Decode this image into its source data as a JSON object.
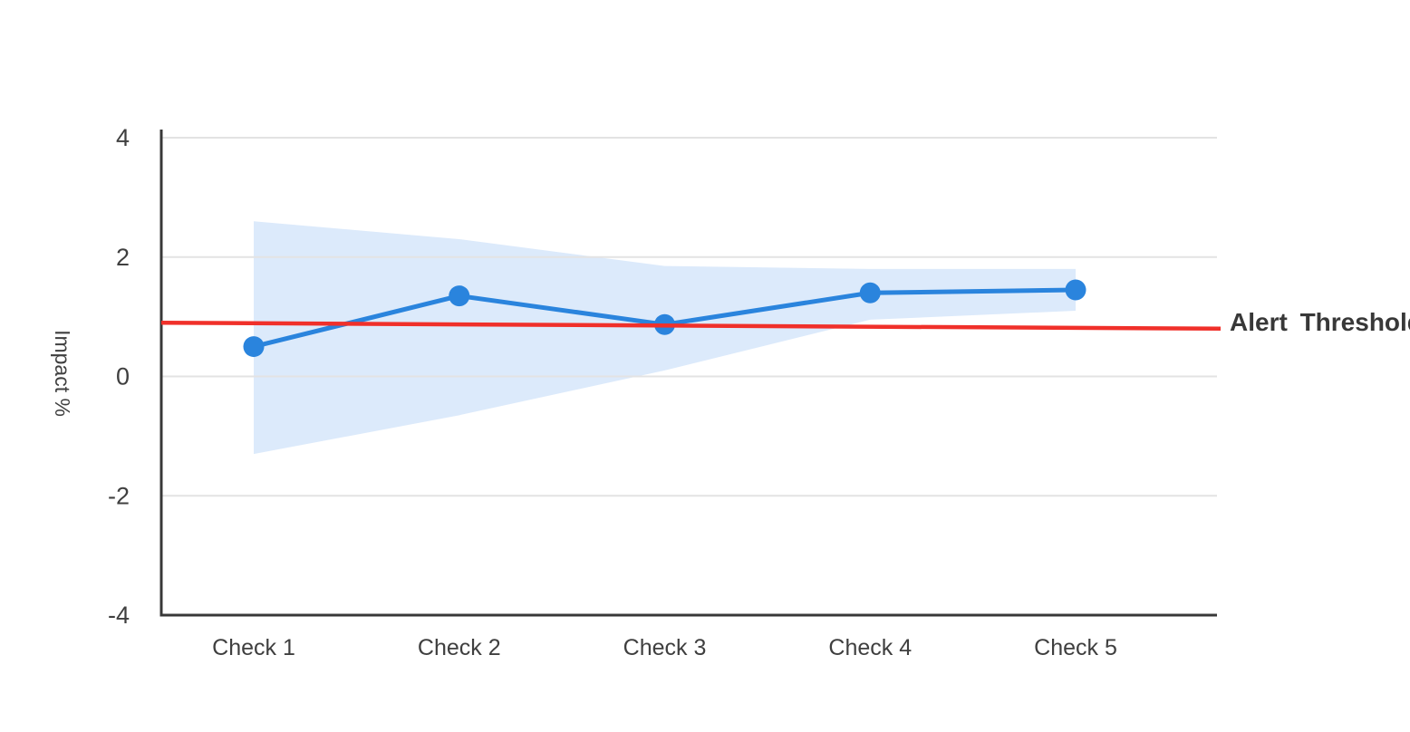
{
  "chart_data": {
    "type": "line",
    "title": "",
    "categories": [
      "Check 1",
      "Check 2",
      "Check 3",
      "Check 4",
      "Check 5"
    ],
    "series": [
      {
        "name": "Impact",
        "values": [
          0.5,
          1.35,
          0.87,
          1.4,
          1.45
        ]
      }
    ],
    "confidence_band": {
      "upper": [
        2.6,
        2.3,
        1.85,
        1.8,
        1.8
      ],
      "lower": [
        -1.3,
        -0.65,
        0.1,
        0.95,
        1.1
      ]
    },
    "threshold": {
      "label": "Alert Threshold",
      "start_value": 0.9,
      "end_value": 0.8
    },
    "ylabel": "Impact %",
    "xlabel": "",
    "yticks": [
      4,
      2,
      0,
      -2,
      -4
    ],
    "ylim": [
      -4,
      4
    ],
    "grid": true,
    "legend_position": "right-of-threshold-line",
    "colors": {
      "line": "#2A84DD",
      "band": "#DCEAFB",
      "threshold": "#F0302A",
      "axis": "#383838",
      "grid": "#E3E3E3",
      "text": "#3F3F3F"
    }
  }
}
